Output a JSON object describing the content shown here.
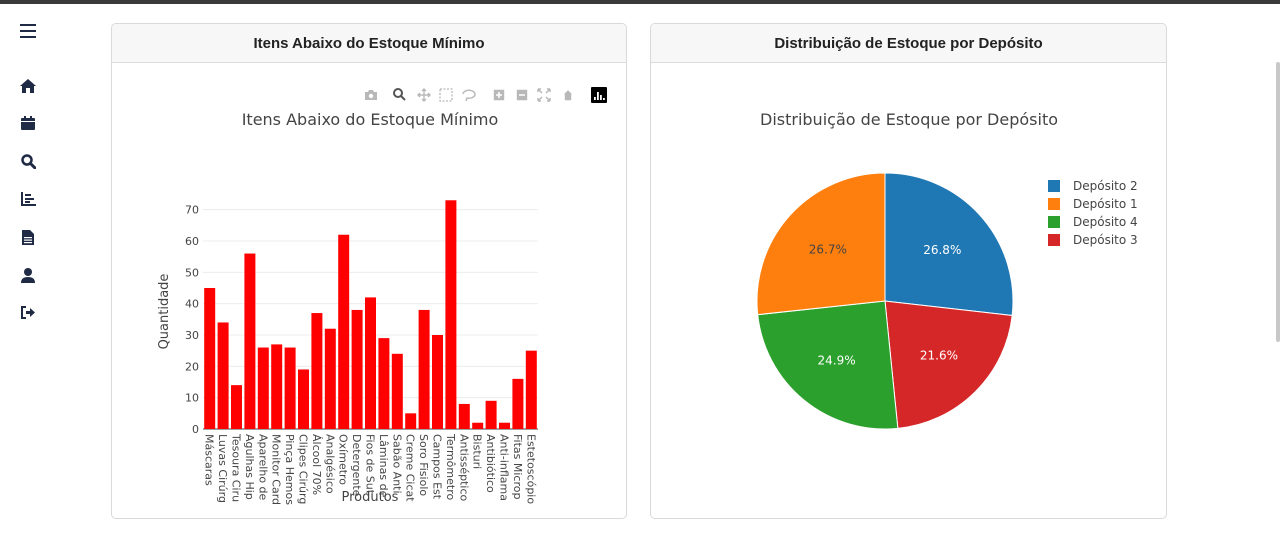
{
  "sidebar": {
    "items": [
      {
        "icon": "menu-icon"
      },
      {
        "icon": "home-icon"
      },
      {
        "icon": "calendar-icon"
      },
      {
        "icon": "search-icon"
      },
      {
        "icon": "chart-icon"
      },
      {
        "icon": "document-icon"
      },
      {
        "icon": "user-icon"
      },
      {
        "icon": "logout-icon"
      }
    ],
    "color": "#1f2a44"
  },
  "cards": [
    {
      "header": "Itens Abaixo do Estoque Mínimo"
    },
    {
      "header": "Distribuição de Estoque por Depósito"
    }
  ],
  "modebar": {
    "icons": [
      "camera-icon",
      "zoom-icon",
      "pan-icon",
      "box-select-icon",
      "lasso-icon",
      "zoom-in-icon",
      "zoom-out-icon",
      "autoscale-icon",
      "reset-axes-icon",
      "plotly-logo-icon"
    ]
  },
  "chart_data": [
    {
      "type": "bar",
      "title": "Itens Abaixo do Estoque Mínimo",
      "xlabel": "Produtos",
      "ylabel": "Quantidade",
      "ylim": [
        0,
        75
      ],
      "yticks": [
        0,
        10,
        20,
        30,
        40,
        50,
        60,
        70
      ],
      "grid": true,
      "color": "#ff0000",
      "categories": [
        "Máscaras",
        "Luvas Cirúrg",
        "Tesoura Ciru",
        "Agulhas Hip",
        "Aparelho de",
        "Monitor Card",
        "Pinça Hemos",
        "Clipes Cirúrg",
        "Álcool 70%",
        "Analgésico",
        "Oxímetro",
        "Detergente",
        "Fios de Sut",
        "Lâminas de",
        "Sabão Anti",
        "Creme Cicat",
        "Soro Fisiolo",
        "Campos Est",
        "Termômetro",
        "Antisséptico",
        "Bisturi",
        "Antibiótico",
        "Anti-inflama",
        "Fitas Microp",
        "Estetoscópio"
      ],
      "values": [
        45,
        34,
        14,
        56,
        26,
        27,
        26,
        19,
        37,
        32,
        62,
        38,
        42,
        29,
        24,
        5,
        38,
        30,
        73,
        8,
        2,
        9,
        2,
        16,
        25
      ]
    },
    {
      "type": "pie",
      "title": "Distribuição de Estoque por Depósito",
      "legend_position": "top-right",
      "slices": [
        {
          "label": "Depósito 2",
          "value": 26.8,
          "text": "26.8%",
          "color": "#1f77b4"
        },
        {
          "label": "Depósito 3",
          "value": 21.6,
          "text": "21.6%",
          "color": "#d62728"
        },
        {
          "label": "Depósito 4",
          "value": 24.9,
          "text": "24.9%",
          "color": "#2ca02c"
        },
        {
          "label": "Depósito 1",
          "value": 26.7,
          "text": "26.7%",
          "color": "#ff7f0e"
        }
      ],
      "legend": [
        "Depósito 2",
        "Depósito 1",
        "Depósito 4",
        "Depósito 3"
      ]
    }
  ]
}
